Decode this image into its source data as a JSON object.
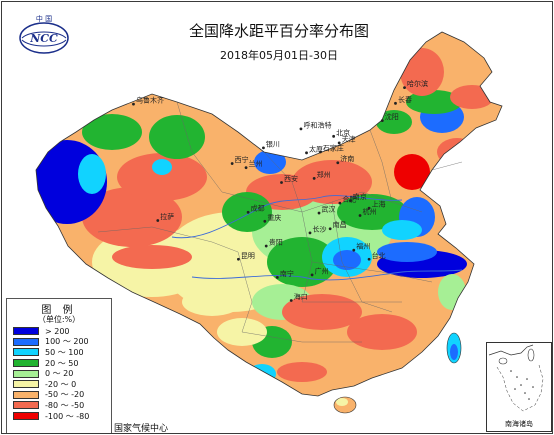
{
  "header": {
    "title": "全国降水距平百分率分布图",
    "subtitle": "2018年05月01日-30日"
  },
  "logo": {
    "top_text": "中 国",
    "initials": "NCC"
  },
  "legend": {
    "title": "图 例",
    "unit": "（单位:%）",
    "items": [
      {
        "label": "> 200",
        "color": "#0000dd"
      },
      {
        "label": "100 ～ 200",
        "color": "#1c6cff"
      },
      {
        "label": "50 ～ 100",
        "color": "#11d3ff"
      },
      {
        "label": "20 ～ 50",
        "color": "#22b431"
      },
      {
        "label": "0 ～ 20",
        "color": "#a6ef95"
      },
      {
        "label": "-20 ～ 0",
        "color": "#f6f4a6"
      },
      {
        "label": "-50 ～ -20",
        "color": "#f9b26b"
      },
      {
        "label": "-80 ～ -50",
        "color": "#f36a50"
      },
      {
        "label": "-100 ～ -80",
        "color": "#ee0000"
      }
    ]
  },
  "credit": "国家气候中心",
  "inset": {
    "label": "南海诸岛"
  },
  "cities": [
    {
      "name": "哈尔滨",
      "lat": 45.8,
      "lon": 126.6
    },
    {
      "name": "长春",
      "lat": 43.9,
      "lon": 125.3
    },
    {
      "name": "沈阳",
      "lat": 41.8,
      "lon": 123.4
    },
    {
      "name": "呼和浩特",
      "lat": 40.8,
      "lon": 111.7
    },
    {
      "name": "乌鲁木齐",
      "lat": 43.8,
      "lon": 87.6
    },
    {
      "name": "北京",
      "lat": 39.9,
      "lon": 116.4
    },
    {
      "name": "天津",
      "lat": 39.1,
      "lon": 117.2
    },
    {
      "name": "石家庄",
      "lat": 38.0,
      "lon": 114.5
    },
    {
      "name": "太原",
      "lat": 37.9,
      "lon": 112.5
    },
    {
      "name": "济南",
      "lat": 36.7,
      "lon": 117.0
    },
    {
      "name": "银川",
      "lat": 38.5,
      "lon": 106.3
    },
    {
      "name": "西宁",
      "lat": 36.6,
      "lon": 101.8
    },
    {
      "name": "兰州",
      "lat": 36.1,
      "lon": 103.8
    },
    {
      "name": "西安",
      "lat": 34.3,
      "lon": 108.9
    },
    {
      "name": "郑州",
      "lat": 34.8,
      "lon": 113.6
    },
    {
      "name": "南京",
      "lat": 32.1,
      "lon": 118.8
    },
    {
      "name": "合肥",
      "lat": 31.8,
      "lon": 117.3
    },
    {
      "name": "上海",
      "lat": 31.2,
      "lon": 121.5
    },
    {
      "name": "武汉",
      "lat": 30.6,
      "lon": 114.3
    },
    {
      "name": "成都",
      "lat": 30.7,
      "lon": 104.1
    },
    {
      "name": "杭州",
      "lat": 30.3,
      "lon": 120.2
    },
    {
      "name": "拉萨",
      "lat": 29.7,
      "lon": 91.1
    },
    {
      "name": "重庆",
      "lat": 29.6,
      "lon": 106.5
    },
    {
      "name": "南昌",
      "lat": 28.7,
      "lon": 115.9
    },
    {
      "name": "长沙",
      "lat": 28.2,
      "lon": 113.0
    },
    {
      "name": "贵阳",
      "lat": 26.6,
      "lon": 106.7
    },
    {
      "name": "福州",
      "lat": 26.1,
      "lon": 119.3
    },
    {
      "name": "昆明",
      "lat": 25.0,
      "lon": 102.7
    },
    {
      "name": "广州",
      "lat": 23.1,
      "lon": 113.3
    },
    {
      "name": "南宁",
      "lat": 22.8,
      "lon": 108.3
    },
    {
      "name": "海口",
      "lat": 20.0,
      "lon": 110.3
    },
    {
      "name": "台北",
      "lat": 25.0,
      "lon": 121.5
    }
  ]
}
